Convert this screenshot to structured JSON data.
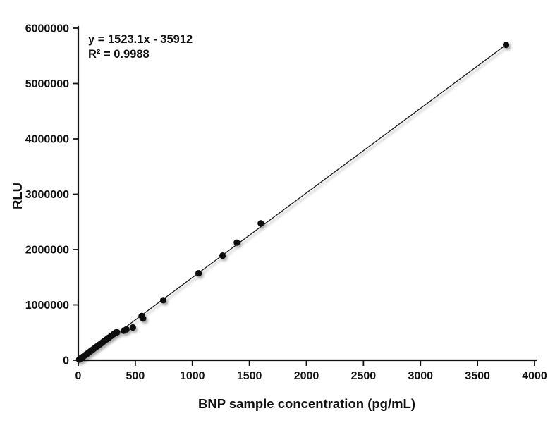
{
  "figure": {
    "background": "#ffffff"
  },
  "chart_data": {
    "type": "scatter",
    "title": "",
    "xlabel": "BNP sample concentration (pg/mL)",
    "ylabel": "RLU",
    "xlim": [
      0,
      4000
    ],
    "ylim": [
      0,
      6000000
    ],
    "x_ticks": [
      0,
      500,
      1000,
      1500,
      2000,
      2500,
      3000,
      3500,
      4000
    ],
    "y_ticks": [
      0,
      1000000,
      2000000,
      3000000,
      4000000,
      5000000,
      6000000
    ],
    "grid": false,
    "legend": "none",
    "annotation": {
      "equation": "y = 1523.1x - 35912",
      "r_squared": "R² = 0.9988"
    },
    "trendline": {
      "slope": 1523.1,
      "intercept": -35912,
      "x_start": 24,
      "x_end": 3750,
      "color": "#1a1a1a",
      "width": 1.3
    },
    "marker": {
      "color": "#111111",
      "radius": 4.6
    },
    "points": [
      [
        8,
        12200
      ],
      [
        14,
        21300
      ],
      [
        20,
        30500
      ],
      [
        26,
        39600
      ],
      [
        32,
        48700
      ],
      [
        40,
        60900
      ],
      [
        48,
        73100
      ],
      [
        56,
        85300
      ],
      [
        64,
        97500
      ],
      [
        72,
        109700
      ],
      [
        80,
        121800
      ],
      [
        90,
        137100
      ],
      [
        100,
        152300
      ],
      [
        110,
        167500
      ],
      [
        120,
        182800
      ],
      [
        132,
        201000
      ],
      [
        145,
        220800
      ],
      [
        158,
        240600
      ],
      [
        170,
        258900
      ],
      [
        185,
        281800
      ],
      [
        200,
        304600
      ],
      [
        215,
        327500
      ],
      [
        232,
        353400
      ],
      [
        250,
        380800
      ],
      [
        268,
        408200
      ],
      [
        288,
        438700
      ],
      [
        308,
        469100
      ],
      [
        330,
        502600
      ],
      [
        340,
        505000
      ],
      [
        398,
        535000
      ],
      [
        422,
        557000
      ],
      [
        478,
        592000
      ],
      [
        556,
        800000
      ],
      [
        568,
        755000
      ],
      [
        745,
        1085000
      ],
      [
        1055,
        1572000
      ],
      [
        1265,
        1890000
      ],
      [
        1390,
        2125000
      ],
      [
        1600,
        2475000
      ],
      [
        3750,
        5700000
      ]
    ]
  }
}
